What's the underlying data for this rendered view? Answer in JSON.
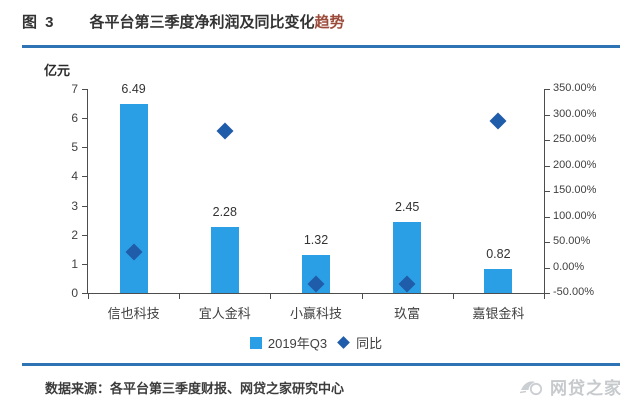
{
  "page": {
    "title_prefix": "图 3",
    "title_main": "各平台第三季度净利润及同比变化",
    "title_highlight": "趋势",
    "source_label": "数据来源：各平台第三季度财报、网贷之家研究中心",
    "watermark_text": "网贷之家"
  },
  "colors": {
    "divider_blue": "#2E74B5",
    "bar_blue": "#2B9FE5",
    "marker_blue": "#1F5CA9",
    "axis_gray": "#4D4D4D",
    "text_gray": "#404040",
    "title_highlight_red": "#9C4B3B",
    "watermark_gray": "#C7CACD"
  },
  "chart_data": {
    "type": "bar",
    "title": "各平台第三季度净利润及同比变化趋势",
    "categories": [
      "信也科技",
      "宜人金科",
      "小赢科技",
      "玖富",
      "嘉银金科"
    ],
    "series": [
      {
        "name": "2019年Q3",
        "type": "bar",
        "axis": "left",
        "unit": "亿元",
        "values": [
          6.49,
          2.28,
          1.32,
          2.45,
          0.82
        ]
      },
      {
        "name": "同比",
        "type": "scatter",
        "marker": "diamond",
        "axis": "right",
        "unit": "%",
        "values": [
          31,
          268,
          -33,
          -33,
          287
        ]
      }
    ],
    "left_axis": {
      "label": "亿元",
      "min": 0,
      "max": 7,
      "step": 1
    },
    "right_axis": {
      "min": -50,
      "max": 350,
      "step": 50,
      "decimals": 2,
      "suffix": "%"
    },
    "legend": [
      "2019年Q3",
      "同比"
    ],
    "legend_position": "bottom",
    "grid": false
  }
}
